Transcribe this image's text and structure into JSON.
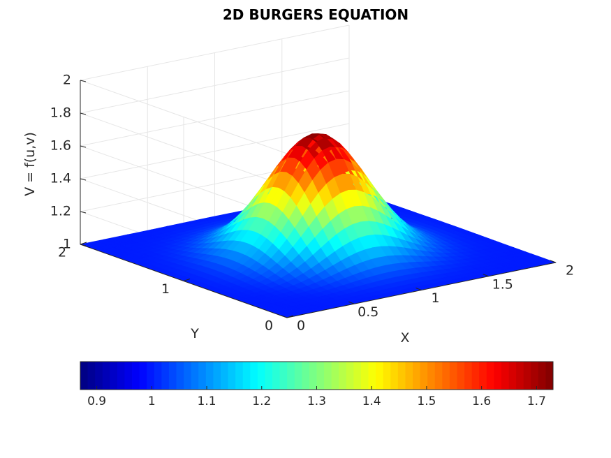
{
  "chart_data": {
    "type": "surface3d",
    "title": "2D BURGERS EQUATION",
    "xlabel": "X",
    "ylabel": "Y",
    "zlabel": "V = f(u,v)",
    "xlim": [
      0,
      2
    ],
    "ylim": [
      0,
      2
    ],
    "zlim": [
      1,
      2
    ],
    "x_ticks": [
      0,
      0.5,
      1,
      1.5,
      2
    ],
    "x_tick_labels": [
      "0",
      "0.5",
      "1",
      "1.5",
      "2"
    ],
    "y_ticks": [
      0,
      1,
      2
    ],
    "y_tick_labels": [
      "0",
      "1",
      "2"
    ],
    "z_ticks": [
      1,
      1.2,
      1.4,
      1.6,
      1.8,
      2
    ],
    "z_tick_labels": [
      "1",
      "1.2",
      "1.4",
      "1.6",
      "1.8",
      "2"
    ],
    "grid": true,
    "colormap": "jet",
    "colorbar": {
      "placement": "bottom",
      "range": [
        0.87,
        1.73
      ],
      "ticks": [
        0.9,
        1,
        1.1,
        1.2,
        1.3,
        1.4,
        1.5,
        1.6,
        1.7
      ],
      "tick_labels": [
        "0.9",
        "1",
        "1.1",
        "1.2",
        "1.3",
        "1.4",
        "1.5",
        "1.6",
        "1.7"
      ]
    },
    "surface": {
      "base_value": 1,
      "peak_value": 1.73,
      "peak_center": [
        1.0,
        1.0
      ],
      "peak_width": 0.3,
      "view_azimuth_deg": -37.5,
      "view_elevation_deg": 30
    }
  }
}
